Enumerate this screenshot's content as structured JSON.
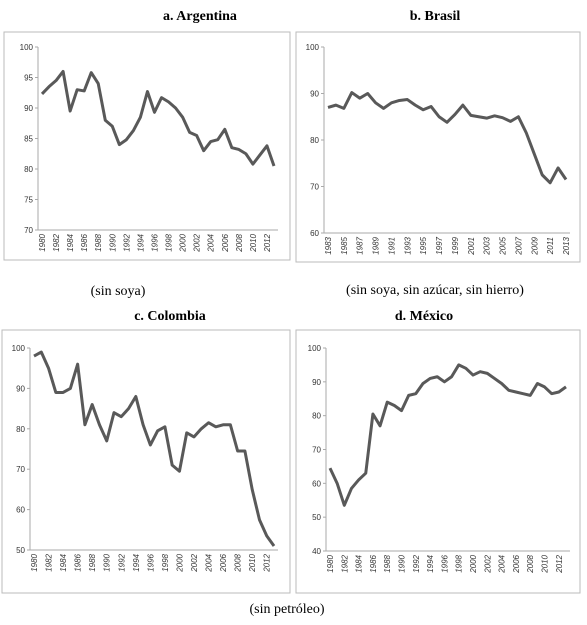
{
  "chart_data": [
    {
      "type": "line",
      "title": "a. Argentina",
      "caption": "(sin soya)",
      "color": "#595959",
      "categories": [
        "1980",
        null,
        "1982",
        null,
        "1984",
        null,
        "1986",
        null,
        "1988",
        null,
        "1990",
        null,
        "1992",
        null,
        "1994",
        null,
        "1996",
        null,
        "1998",
        null,
        "2000",
        null,
        "2002",
        null,
        "2004",
        null,
        "2006",
        null,
        "2008",
        null,
        "2010",
        null,
        "2012",
        null
      ],
      "values": [
        92.3,
        93.5,
        94.5,
        96,
        89.5,
        93,
        92.8,
        95.8,
        94,
        88,
        87,
        84,
        84.8,
        86.3,
        88.5,
        92.7,
        89.3,
        91.7,
        91,
        90,
        88.5,
        86,
        85.5,
        83,
        84.5,
        84.8,
        86.5,
        83.5,
        83.2,
        82.5,
        80.8,
        82.3,
        83.8,
        80.5
      ],
      "ylim": [
        70,
        100
      ],
      "yticks": [
        70,
        75,
        80,
        85,
        90,
        95,
        100
      ]
    },
    {
      "type": "line",
      "title": "b. Brasil",
      "caption": "(sin soya, sin azúcar, sin hierro)",
      "color": "#595959",
      "categories": [
        "1983",
        null,
        "1985",
        null,
        "1987",
        null,
        "1989",
        null,
        "1991",
        null,
        "1993",
        null,
        "1995",
        null,
        "1997",
        null,
        "1999",
        null,
        "2001",
        null,
        "2003",
        null,
        "2005",
        null,
        "2007",
        null,
        "2009",
        null,
        "2011",
        null,
        "2013"
      ],
      "values": [
        87,
        87.5,
        86.8,
        90.2,
        89,
        90,
        88,
        86.8,
        88,
        88.5,
        88.7,
        87.5,
        86.5,
        87.2,
        85,
        83.8,
        85.5,
        87.5,
        85.3,
        85,
        84.7,
        85.2,
        84.8,
        84,
        85,
        81.5,
        77,
        72.5,
        70.8,
        74,
        71.5
      ],
      "ylim": [
        60,
        100
      ],
      "yticks": [
        60,
        70,
        80,
        90,
        100
      ]
    },
    {
      "type": "line",
      "title": "c. Colombia",
      "color": "#595959",
      "categories": [
        "1980",
        null,
        "1982",
        null,
        "1984",
        null,
        "1986",
        null,
        "1988",
        null,
        "1990",
        null,
        "1992",
        null,
        "1994",
        null,
        "1996",
        null,
        "1998",
        null,
        "2000",
        null,
        "2002",
        null,
        "2004",
        null,
        "2006",
        null,
        "2008",
        null,
        "2010",
        null,
        "2012",
        null
      ],
      "values": [
        98,
        99,
        95,
        89,
        89,
        90,
        96,
        81,
        86,
        81,
        77,
        84,
        83,
        85,
        88,
        81,
        76,
        79.5,
        80.5,
        71,
        69.5,
        79,
        78,
        80,
        81.5,
        80.5,
        81,
        81,
        74.5,
        74.5,
        65,
        57.5,
        53.5,
        51
      ],
      "ylim": [
        50,
        100
      ],
      "yticks": [
        50,
        60,
        70,
        80,
        90,
        100
      ]
    },
    {
      "type": "line",
      "title": "d. México",
      "color": "#595959",
      "categories": [
        "1980",
        null,
        "1982",
        null,
        "1984",
        null,
        "1986",
        null,
        "1988",
        null,
        "1990",
        null,
        "1992",
        null,
        "1994",
        null,
        "1996",
        null,
        "1998",
        null,
        "2000",
        null,
        "2002",
        null,
        "2004",
        null,
        "2006",
        null,
        "2008",
        null,
        "2010",
        null,
        "2012",
        null
      ],
      "values": [
        64.5,
        60,
        53.5,
        58.5,
        61,
        63,
        80.5,
        77,
        84,
        83,
        81.5,
        86,
        86.5,
        89.5,
        91,
        91.5,
        90,
        91.5,
        95,
        94,
        92,
        93,
        92.5,
        91,
        89.5,
        87.5,
        87,
        86.5,
        86,
        89.5,
        88.5,
        86.5,
        87,
        88.5
      ],
      "ylim": [
        40,
        100
      ],
      "yticks": [
        40,
        50,
        60,
        70,
        80,
        90,
        100
      ]
    }
  ],
  "footnote": "(sin petróleo)"
}
